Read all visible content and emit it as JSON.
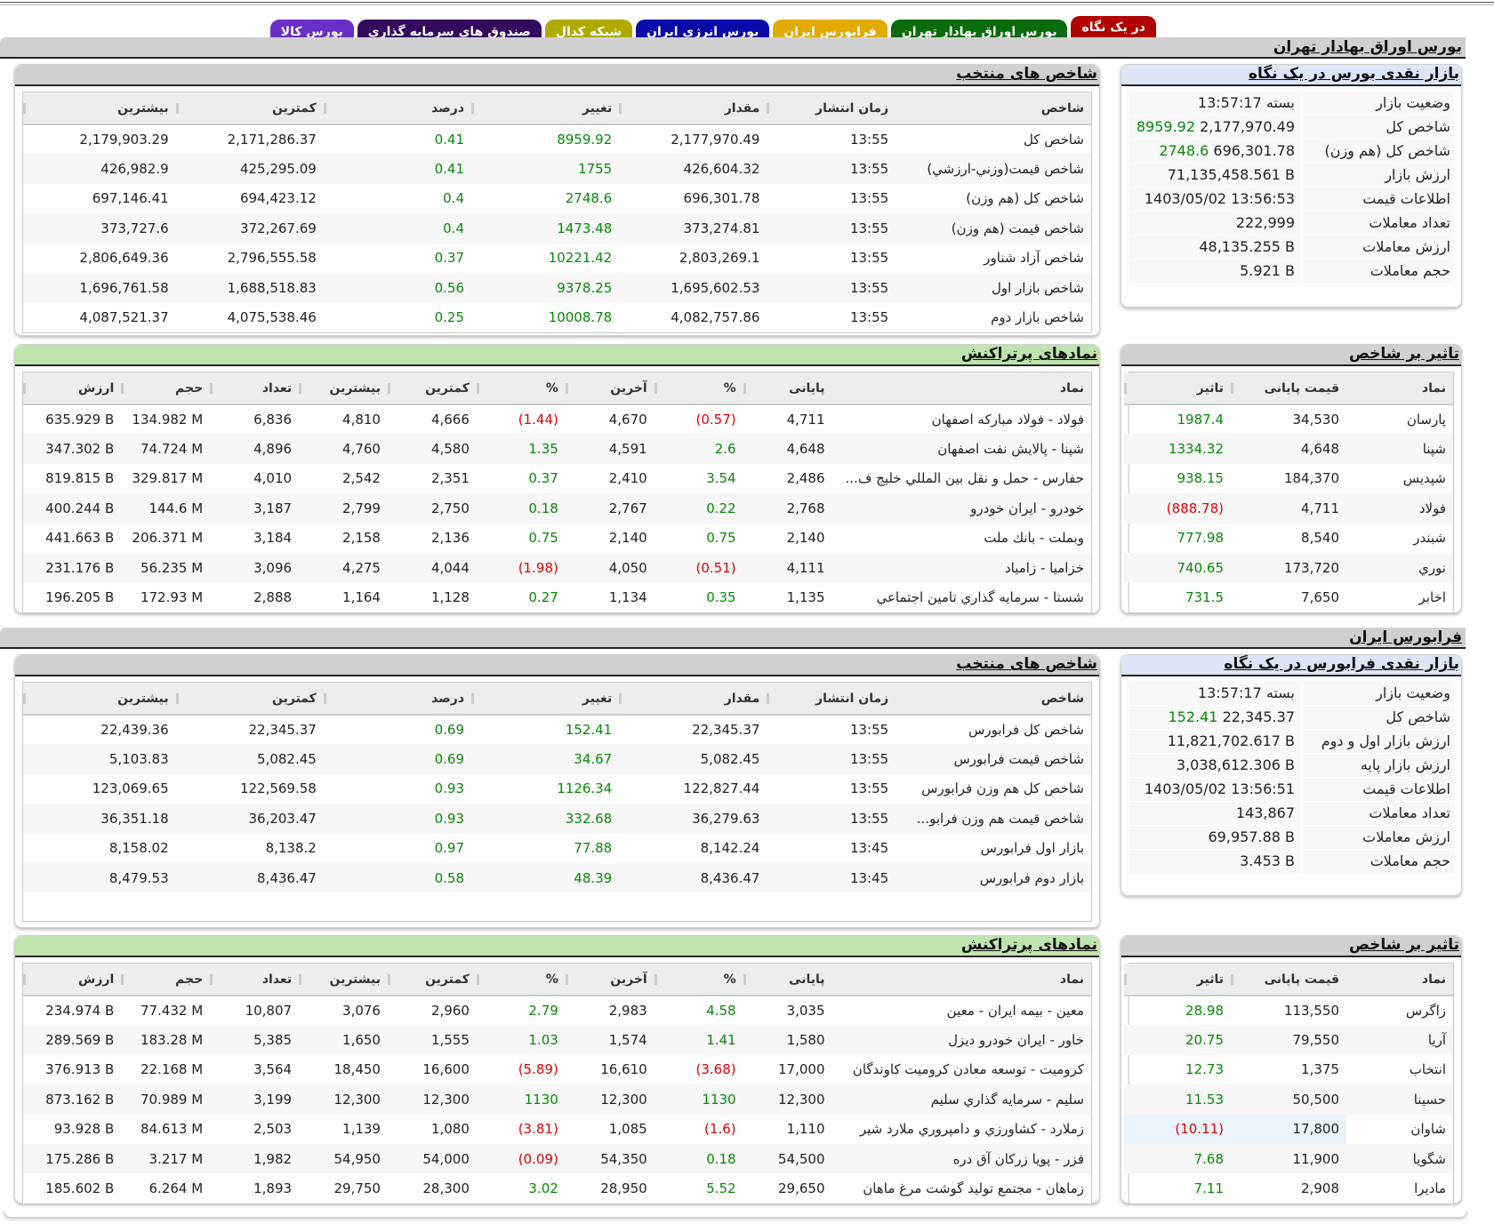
{
  "tabs": [
    {
      "label": "در یک نگاه",
      "color": "#b00000",
      "active": true
    },
    {
      "label": "بورس اوراق بهادار تهران",
      "color": "#0a6b0a"
    },
    {
      "label": "فرابورس ایران",
      "color": "#e0aa00"
    },
    {
      "label": "بورس انرژی ایران",
      "color": "#0a0aa8"
    },
    {
      "label": "شبکه کدال",
      "color": "#b0aa00"
    },
    {
      "label": "صندوق های سرمایه گذاری",
      "color": "#320a5e"
    },
    {
      "label": "بورس کالا",
      "color": "#6a2fc6"
    }
  ],
  "tse": {
    "title": "بورس اوراق بهادار تهران",
    "summary": {
      "title": "بازار نقدی بورس در یک نگاه",
      "rows": [
        {
          "label": "وضعیت بازار",
          "value": "بسته 13:57:17"
        },
        {
          "label": "شاخص کل",
          "value": "2,177,970.49",
          "change": "8959.92"
        },
        {
          "label": "شاخص کل (هم وزن)",
          "value": "696,301.78",
          "change": "2748.6"
        },
        {
          "label": "ارزش بازار",
          "value": "71,135,458.561 B"
        },
        {
          "label": "اطلاعات قیمت",
          "value": "1403/05/02 13:56:53"
        },
        {
          "label": "تعداد معاملات",
          "value": "222,999"
        },
        {
          "label": "ارزش معاملات",
          "value": "48,135.255 B"
        },
        {
          "label": "حجم معاملات",
          "value": "5.921 B"
        }
      ]
    },
    "indices": {
      "title": "شاخص های منتخب",
      "columns": [
        "شاخص",
        "زمان انتشار",
        "مقدار",
        "تغییر",
        "درصد",
        "کمترین",
        "بیشترین"
      ],
      "rows": [
        [
          "شاخص کل",
          "13:55",
          "2,177,970.49",
          "8959.92",
          "0.41",
          "2,171,286.37",
          "2,179,903.29"
        ],
        [
          "شاخص قیمت(وزني-ارزشي)",
          "13:55",
          "426,604.32",
          "1755",
          "0.41",
          "425,295.09",
          "426,982.9"
        ],
        [
          "شاخص کل (هم وزن)",
          "13:55",
          "696,301.78",
          "2748.6",
          "0.4",
          "694,423.12",
          "697,146.41"
        ],
        [
          "شاخص قیمت (هم وزن)",
          "13:55",
          "373,274.81",
          "1473.48",
          "0.4",
          "372,267.69",
          "373,727.6"
        ],
        [
          "شاخص آزاد شناور",
          "13:55",
          "2,803,269.1",
          "10221.42",
          "0.37",
          "2,796,555.58",
          "2,806,649.36"
        ],
        [
          "شاخص بازار اول",
          "13:55",
          "1,695,602.53",
          "9378.25",
          "0.56",
          "1,688,518.83",
          "1,696,761.58"
        ],
        [
          "شاخص بازار دوم",
          "13:55",
          "4,082,757.86",
          "10008.78",
          "0.25",
          "4,075,538.46",
          "4,087,521.37"
        ]
      ]
    },
    "impact": {
      "title": "تاثیر بر شاخص",
      "columns": [
        "نماد",
        "قیمت پایانی",
        "تاثیر"
      ],
      "rows": [
        [
          "پارسان",
          "34,530",
          "1987.4"
        ],
        [
          "شپنا",
          "4,648",
          "1334.32"
        ],
        [
          "شپدیس",
          "184,370",
          "938.15"
        ],
        [
          "فولاد",
          "4,711",
          "(888.78)"
        ],
        [
          "شبندر",
          "8,540",
          "777.98"
        ],
        [
          "نوري",
          "173,720",
          "740.65"
        ],
        [
          "اخابر",
          "7,650",
          "731.5"
        ]
      ]
    },
    "active": {
      "title": "نمادهای پرتراکنش",
      "columns": [
        "نماد",
        "پایانی",
        "%",
        "آخرین",
        "%",
        "کمترین",
        "بیشترین",
        "تعداد",
        "حجم",
        "ارزش"
      ],
      "rows": [
        [
          "فولاد - فولاد مبارکه اصفهان",
          "4,711",
          "(0.57)",
          "4,670",
          "(1.44)",
          "4,666",
          "4,810",
          "6,836",
          "134.982 M",
          "635.929 B"
        ],
        [
          "شپنا - پالایش نفت اصفهان",
          "4,648",
          "2.6",
          "4,591",
          "1.35",
          "4,580",
          "4,760",
          "4,896",
          "74.724 M",
          "347.302 B"
        ],
        [
          "حفارس - حمل و نقل بین المللي خلیج ف...",
          "2,486",
          "3.54",
          "2,410",
          "0.37",
          "2,351",
          "2,542",
          "4,010",
          "329.817 M",
          "819.815 B"
        ],
        [
          "خودرو - ایران خودرو",
          "2,768",
          "0.22",
          "2,767",
          "0.18",
          "2,750",
          "2,799",
          "3,187",
          "144.6 M",
          "400.244 B"
        ],
        [
          "وبملت - بانك ملت",
          "2,140",
          "0.75",
          "2,140",
          "0.75",
          "2,136",
          "2,158",
          "3,184",
          "206.371 M",
          "441.663 B"
        ],
        [
          "خزامیا - زامیاد",
          "4,111",
          "(0.51)",
          "4,050",
          "(1.98)",
          "4,044",
          "4,275",
          "3,096",
          "56.235 M",
          "231.176 B"
        ],
        [
          "شستا - سرمایه گذاري تامین اجتماعي",
          "1,135",
          "0.35",
          "1,134",
          "0.27",
          "1,128",
          "1,164",
          "2,888",
          "172.93 M",
          "196.205 B"
        ]
      ]
    }
  },
  "ifb": {
    "title": "فرابورس ایران",
    "summary": {
      "title": "بازار نقدی فرابورس در یک نگاه",
      "rows": [
        {
          "label": "وضعیت بازار",
          "value": "بسته 13:57:17"
        },
        {
          "label": "شاخص کل",
          "value": "22,345.37",
          "change": "152.41"
        },
        {
          "label": "ارزش بازار اول و دوم",
          "value": "11,821,702.617 B"
        },
        {
          "label": "ارزش بازار پایه",
          "value": "3,038,612.306 B"
        },
        {
          "label": "اطلاعات قیمت",
          "value": "1403/05/02 13:56:51"
        },
        {
          "label": "تعداد معاملات",
          "value": "143,867"
        },
        {
          "label": "ارزش معاملات",
          "value": "69,957.88 B"
        },
        {
          "label": "حجم معاملات",
          "value": "3.453 B"
        }
      ]
    },
    "indices": {
      "title": "شاخص های منتخب",
      "columns": [
        "شاخص",
        "زمان انتشار",
        "مقدار",
        "تغییر",
        "درصد",
        "کمترین",
        "بیشترین"
      ],
      "rows": [
        [
          "شاخص کل فرابورس",
          "13:55",
          "22,345.37",
          "152.41",
          "0.69",
          "22,345.37",
          "22,439.36"
        ],
        [
          "شاخص قیمت فرابورس",
          "13:55",
          "5,082.45",
          "34.67",
          "0.69",
          "5,082.45",
          "5,103.83"
        ],
        [
          "شاخص کل هم وزن فرابورس",
          "13:55",
          "122,827.44",
          "1126.34",
          "0.93",
          "122,569.58",
          "123,069.65"
        ],
        [
          "شاخص قیمت هم وزن فرابو...",
          "13:55",
          "36,279.63",
          "332.68",
          "0.93",
          "36,203.47",
          "36,351.18"
        ],
        [
          "بازار اول فرابورس",
          "13:45",
          "8,142.24",
          "77.88",
          "0.97",
          "8,138.2",
          "8,158.02"
        ],
        [
          "بازار دوم فرابورس",
          "13:45",
          "8,436.47",
          "48.39",
          "0.58",
          "8,436.47",
          "8,479.53"
        ]
      ]
    },
    "impact": {
      "title": "تاثیر بر شاخص",
      "columns": [
        "نماد",
        "قیمت پایانی",
        "تاثیر"
      ],
      "rows": [
        [
          "زاگرس",
          "113,550",
          "28.98"
        ],
        [
          "آریا",
          "79,550",
          "20.75"
        ],
        [
          "انتخاب",
          "1,375",
          "12.73"
        ],
        [
          "حسینا",
          "50,500",
          "11.53"
        ],
        [
          "شاوان",
          "17,800",
          "(10.11)"
        ],
        [
          "شگویا",
          "11,900",
          "7.68"
        ],
        [
          "مادیرا",
          "2,908",
          "7.11"
        ]
      ]
    },
    "active": {
      "title": "نمادهای پرتراکنش",
      "columns": [
        "نماد",
        "پایانی",
        "%",
        "آخرین",
        "%",
        "کمترین",
        "بیشترین",
        "تعداد",
        "حجم",
        "ارزش"
      ],
      "rows": [
        [
          "معین - بیمه ایران - معین",
          "3,035",
          "4.58",
          "2,983",
          "2.79",
          "2,960",
          "3,076",
          "10,807",
          "77.432 M",
          "234.974 B"
        ],
        [
          "خاور - ایران خودرو دیزل",
          "1,580",
          "1.41",
          "1,574",
          "1.03",
          "1,555",
          "1,650",
          "5,385",
          "183.28 M",
          "289.569 B"
        ],
        [
          "کرومیت - توسعه معادن کرومیت کاوندگان",
          "17,000",
          "(3.68)",
          "16,610",
          "(5.89)",
          "16,600",
          "18,450",
          "3,564",
          "22.168 M",
          "376.913 B"
        ],
        [
          "سلیم - سرمایه گذاري سلیم",
          "12,300",
          "1130",
          "12,300",
          "1130",
          "12,300",
          "12,300",
          "3,199",
          "70.989 M",
          "873.162 B"
        ],
        [
          "زملارد - کشاورزي و دامپروري ملارد شیر",
          "1,110",
          "(1.6)",
          "1,085",
          "(3.81)",
          "1,080",
          "1,139",
          "2,503",
          "84.613 M",
          "93.928 B"
        ],
        [
          "فزر - پویا زرکان آق دره",
          "54,500",
          "0.18",
          "54,350",
          "(0.09)",
          "54,000",
          "54,950",
          "1,982",
          "3.217 M",
          "175.286 B"
        ],
        [
          "زماهان - مجتمع تولید گوشت مرغ ماهان",
          "29,650",
          "5.52",
          "28,950",
          "3.02",
          "28,300",
          "29,750",
          "1,893",
          "6.264 M",
          "185.602 B"
        ]
      ]
    }
  },
  "colors": {
    "positive": "#078a07",
    "negative": "#e00000",
    "green_header": "#c0e4ad",
    "blue_header": "#dce6f7",
    "gray_header": "#d0d0d0"
  }
}
